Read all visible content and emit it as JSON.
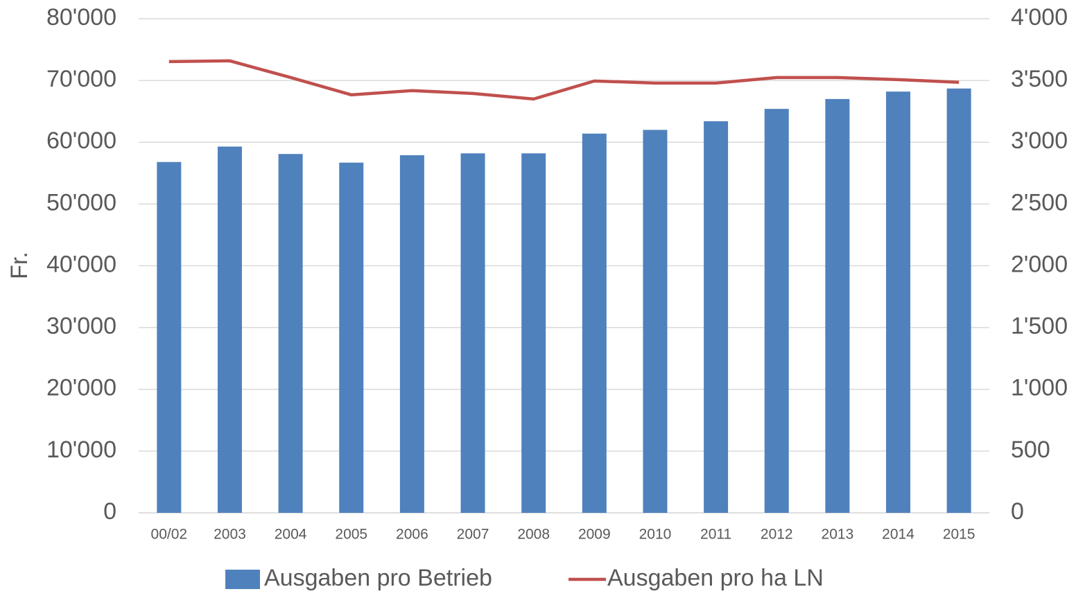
{
  "chart_data": {
    "type": "bar_line",
    "y_label": "Fr.",
    "categories": [
      "00/02",
      "2003",
      "2004",
      "2005",
      "2006",
      "2007",
      "2008",
      "2009",
      "2010",
      "2011",
      "2012",
      "2013",
      "2014",
      "2015"
    ],
    "series": [
      {
        "name": "Ausgaben pro Betrieb",
        "type": "bar",
        "color": "#4f81bd",
        "values": [
          56800,
          59300,
          58100,
          56700,
          57900,
          58200,
          58200,
          61400,
          62000,
          63400,
          65400,
          67000,
          68200,
          68700
        ]
      },
      {
        "name": "Ausgaben pro ha LN",
        "type": "line",
        "axis": "y2",
        "color": "#c0504d",
        "values": [
          3653,
          3659,
          3524,
          3384,
          3418,
          3395,
          3350,
          3496,
          3479,
          3479,
          3524,
          3524,
          3507,
          3485
        ]
      }
    ],
    "ylim": [
      0,
      80000
    ],
    "yticks": [
      0,
      {
        "value": 10000,
        "label": "10'000"
      },
      {
        "value": 20000,
        "label": "20'000"
      },
      {
        "value": 30000,
        "label": "30'000"
      },
      {
        "value": 40000,
        "label": "40'000"
      },
      {
        "value": 50000,
        "label": "50'000"
      },
      {
        "value": 60000,
        "label": "60'000"
      },
      {
        "value": 70000,
        "label": "70'000"
      },
      {
        "value": 80000,
        "label": "80'000"
      }
    ],
    "y2lim": [
      0,
      4000
    ],
    "y2ticks": [
      0,
      500,
      {
        "value": 1000,
        "label": "1'000"
      },
      {
        "value": 1500,
        "label": "1'500"
      },
      {
        "value": 2000,
        "label": "2'000"
      },
      {
        "value": 2500,
        "label": "2'500"
      },
      {
        "value": 3000,
        "label": "3'000"
      },
      {
        "value": 3500,
        "label": "3'500"
      },
      {
        "value": 4000,
        "label": "4'000"
      }
    ],
    "grid": true,
    "legend": "bottom"
  }
}
